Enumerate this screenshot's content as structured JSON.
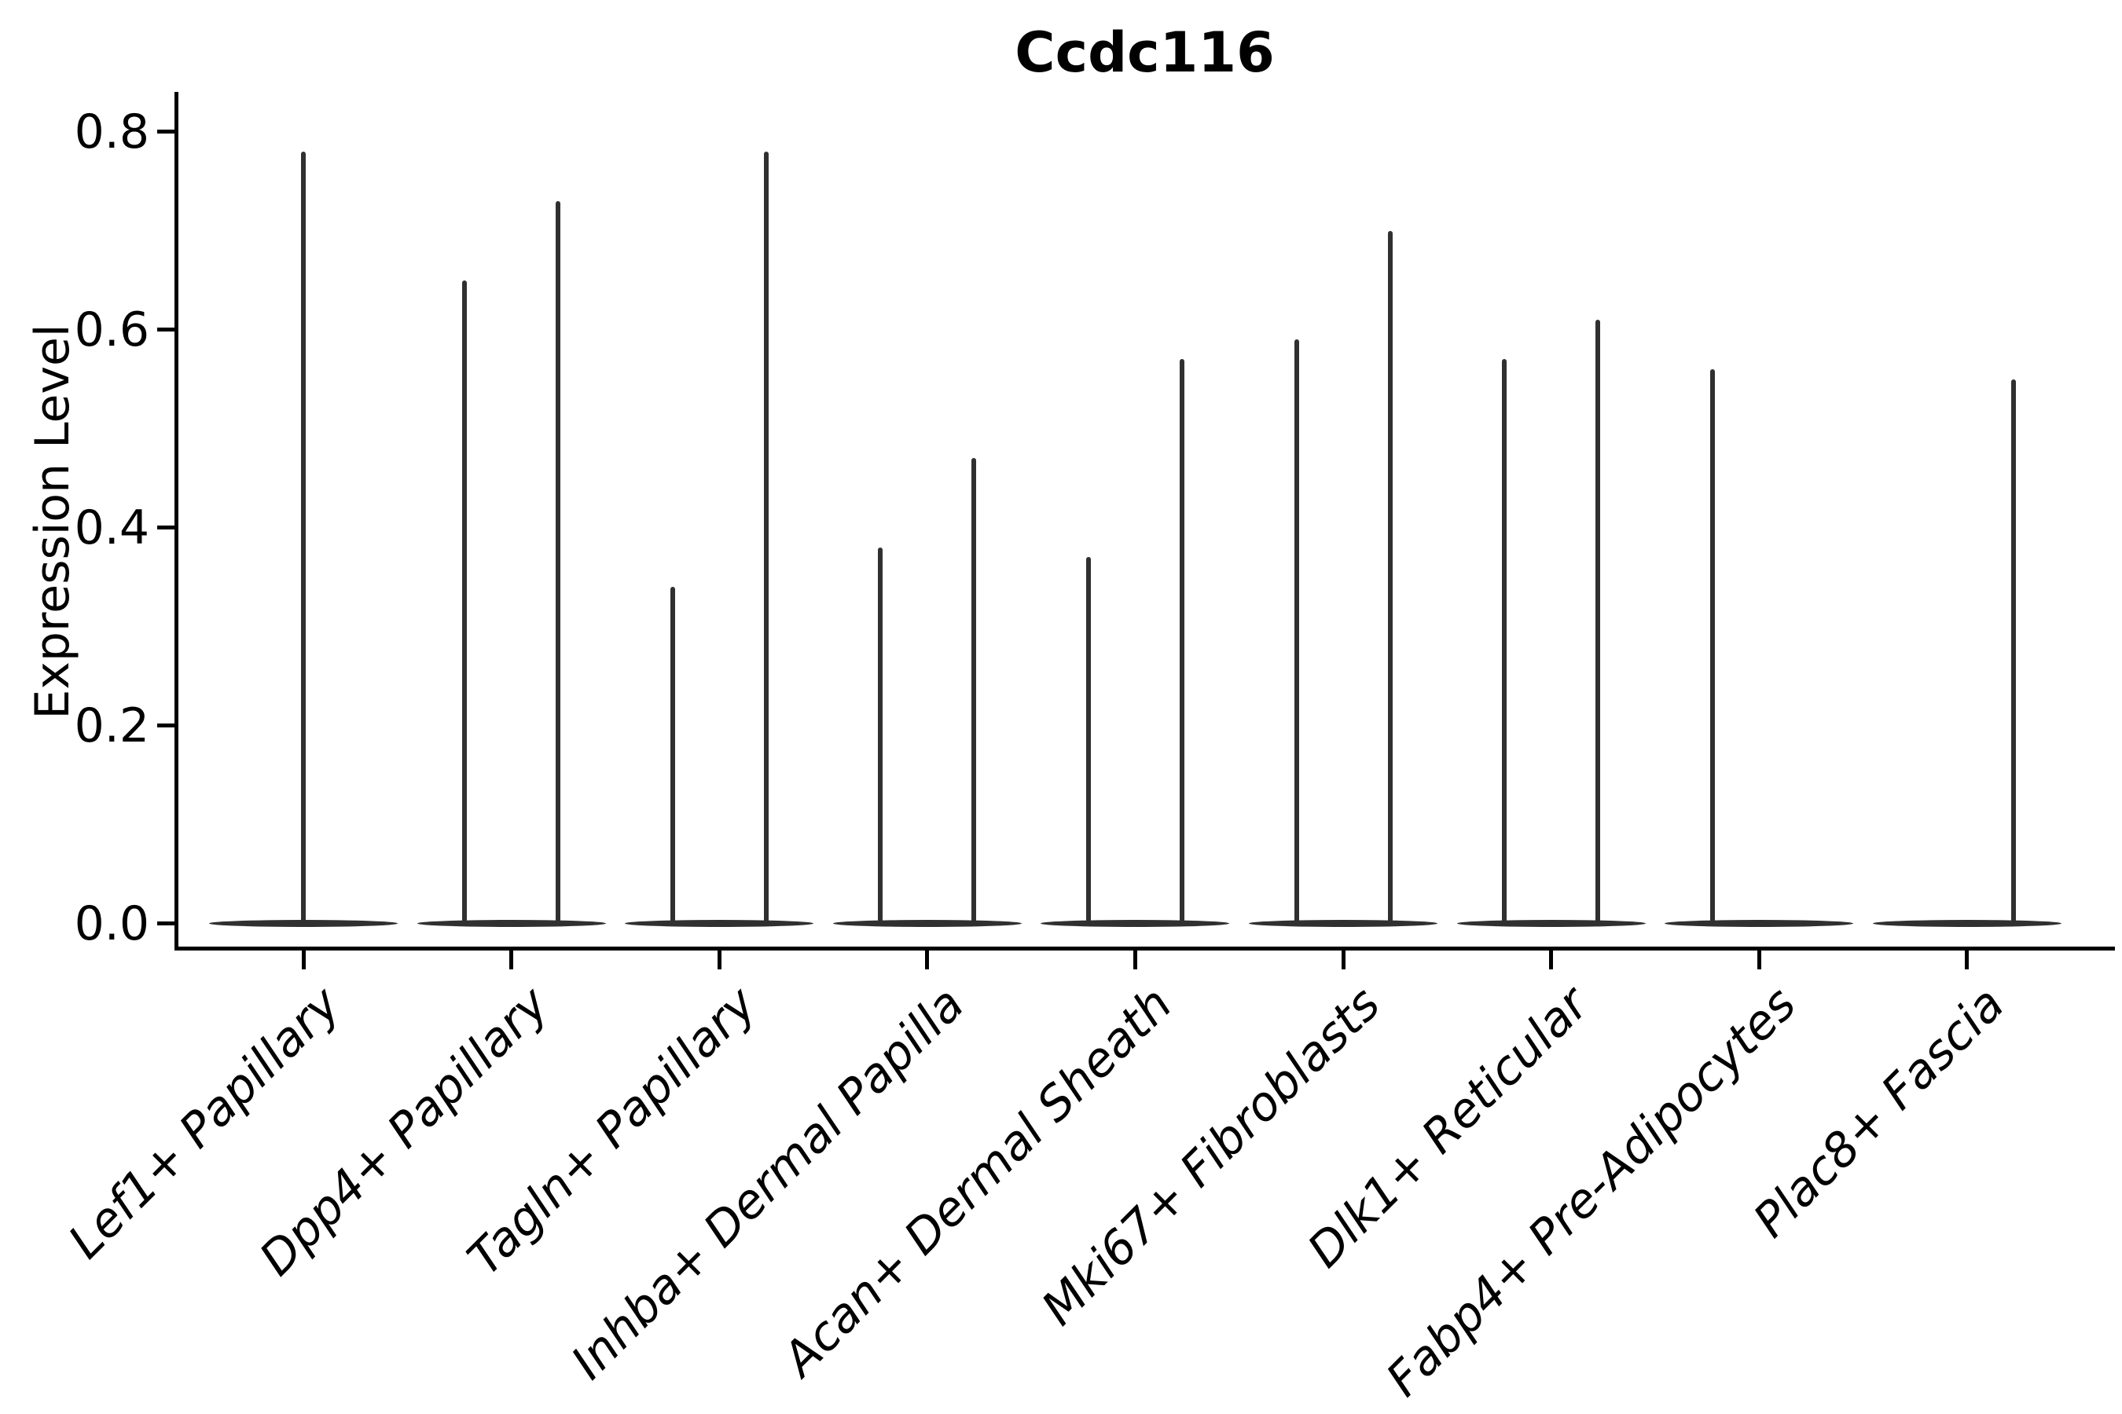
{
  "colors": {
    "ink": "#303030",
    "axis": "#000000",
    "background": "#ffffff"
  },
  "chart_data": {
    "type": "violin",
    "title": "Ccdc116",
    "ylabel": "Expression Level",
    "xlabel": "",
    "ylim": [
      -0.04,
      0.84
    ],
    "yticks": [
      0,
      0.2,
      0.4,
      0.6,
      0.8
    ],
    "ytick_labels": [
      "0.0",
      "0.2",
      "0.4",
      "0.6",
      "0.8"
    ],
    "grid": "off",
    "legend": "none",
    "categories": [
      "Lef1+ Papillary",
      "Dpp4+ Papillary",
      "Tagln+ Papillary",
      "Inhba+ Dermal Papilla",
      "Acan+ Dermal Sheath",
      "Mki67+ Fibroblasts",
      "Dlk1+ Reticular",
      "Fabp4+ Pre-Adipocytes",
      "Plac8+ Fascia"
    ],
    "violin_description": "Each category shows a violin collapsed to a flat bar at expression 0 with a thin spike rising to the maximum expression value; several categories contain two side-by-side (dodged) violins.",
    "baseline_value": 0,
    "violins": [
      {
        "category": "Lef1+ Papillary",
        "groups": [
          {
            "position": "center",
            "max": 0.78
          }
        ]
      },
      {
        "category": "Dpp4+ Papillary",
        "groups": [
          {
            "position": "left",
            "max": 0.65
          },
          {
            "position": "right",
            "max": 0.73
          }
        ]
      },
      {
        "category": "Tagln+ Papillary",
        "groups": [
          {
            "position": "left",
            "max": 0.34
          },
          {
            "position": "right",
            "max": 0.78
          }
        ]
      },
      {
        "category": "Inhba+ Dermal Papilla",
        "groups": [
          {
            "position": "left",
            "max": 0.38
          },
          {
            "position": "right",
            "max": 0.47
          }
        ]
      },
      {
        "category": "Acan+ Dermal Sheath",
        "groups": [
          {
            "position": "left",
            "max": 0.37
          },
          {
            "position": "right",
            "max": 0.57
          }
        ]
      },
      {
        "category": "Mki67+ Fibroblasts",
        "groups": [
          {
            "position": "left",
            "max": 0.59
          },
          {
            "position": "right",
            "max": 0.7
          }
        ]
      },
      {
        "category": "Dlk1+ Reticular",
        "groups": [
          {
            "position": "left",
            "max": 0.57
          },
          {
            "position": "right",
            "max": 0.61
          }
        ]
      },
      {
        "category": "Fabp4+ Pre-Adipocytes",
        "groups": [
          {
            "position": "left",
            "max": 0.56
          },
          {
            "position": "right",
            "max": 0.0
          }
        ]
      },
      {
        "category": "Plac8+ Fascia",
        "groups": [
          {
            "position": "left",
            "max": 0.0
          },
          {
            "position": "right",
            "max": 0.55
          }
        ]
      }
    ]
  }
}
